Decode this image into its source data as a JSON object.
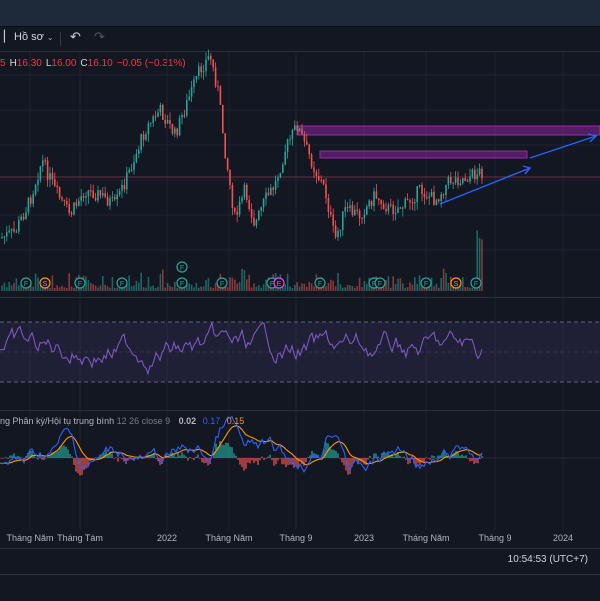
{
  "toolbar": {
    "layout_label": "Hồ sơ",
    "undo_icon": "undo-icon",
    "redo_icon": "redo-icon",
    "chevron_icon": "chevron-down-icon"
  },
  "ohlc": {
    "o_tail": "5",
    "h_key": "H",
    "h_val": "16.30",
    "l_key": "L",
    "l_val": "16.00",
    "c_key": "C",
    "c_val": "16.10",
    "change": "−0.05 (−0.31%)"
  },
  "macd": {
    "name": "ng Phân kỳ/Hội tụ trung bình",
    "params": "12 26 close 9",
    "hist_value": "0.02",
    "macd_value": "0.17",
    "signal_value": "0.15"
  },
  "events": {
    "dividend_letter": "F",
    "split_letter": "S",
    "earnings_letter": "E"
  },
  "xaxis": {
    "labels": [
      "Tháng Năm",
      "Tháng Tám",
      "2022",
      "Tháng Năm",
      "Tháng 9",
      "2023",
      "Tháng Năm",
      "Tháng 9",
      "2024"
    ]
  },
  "status": {
    "time": "10:54:53 (UTC+7)"
  },
  "colors": {
    "up": "#26a69a",
    "down": "#ef5350",
    "rsi": "#7e57c2",
    "macd": "#2962ff",
    "signal": "#ff9800",
    "zone": "#9c27b0",
    "trend": "#2962ff"
  }
}
